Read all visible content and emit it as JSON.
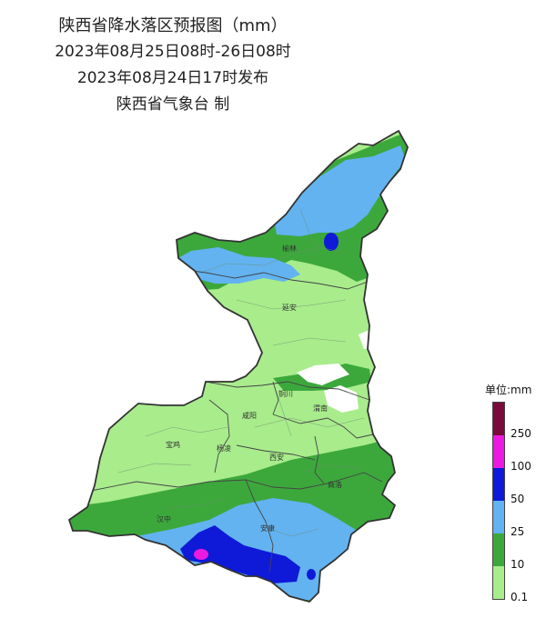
{
  "title": {
    "line1": "陕西省降水落区预报图（mm）",
    "line2": "2023年08月25日08时-26日08时",
    "line3": "2023年08月24日17时发布",
    "line4": "陕西省气象台 制"
  },
  "cities": [
    {
      "key": "yulin",
      "name": "榆林"
    },
    {
      "key": "yanan",
      "name": "延安"
    },
    {
      "key": "tongchuan",
      "name": "铜川"
    },
    {
      "key": "weinan",
      "name": "渭南"
    },
    {
      "key": "xianyang",
      "name": "咸阳"
    },
    {
      "key": "baoji",
      "name": "宝鸡"
    },
    {
      "key": "yangling",
      "name": "杨凌"
    },
    {
      "key": "xian",
      "name": "西安"
    },
    {
      "key": "shangluo",
      "name": "商洛"
    },
    {
      "key": "hanzhong",
      "name": "汉中"
    },
    {
      "key": "ankang",
      "name": "安康"
    }
  ],
  "legend": {
    "title": "单位:mm",
    "levels": [
      {
        "label": "250",
        "color": "#7a0a3c"
      },
      {
        "label": "100",
        "color": "#ec1ae0"
      },
      {
        "label": "50",
        "color": "#0f1ad8"
      },
      {
        "label": "25",
        "color": "#62b3f0"
      },
      {
        "label": "10",
        "color": "#3ca83c"
      },
      {
        "label": "0.1",
        "color": "#a8ec8c"
      }
    ]
  },
  "colors": {
    "light_rain": "#a8ec8c",
    "moderate_rain": "#3ca83c",
    "heavy_rain": "#62b3f0",
    "rainstorm": "#0f1ad8",
    "heavy_rainstorm": "#ec1ae0",
    "no_rain": "#ffffff",
    "border": "#333333"
  }
}
